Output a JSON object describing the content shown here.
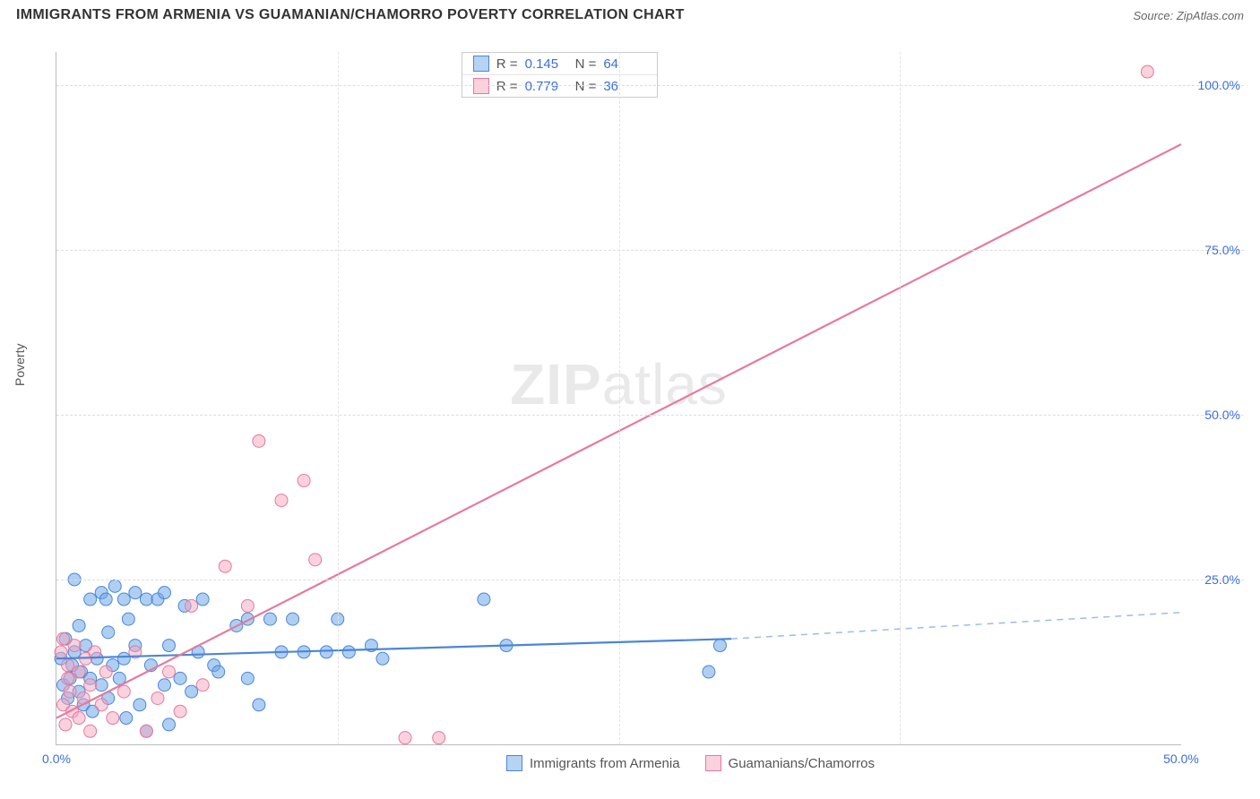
{
  "title": "IMMIGRANTS FROM ARMENIA VS GUAMANIAN/CHAMORRO POVERTY CORRELATION CHART",
  "source": "Source: ZipAtlas.com",
  "ylabel": "Poverty",
  "watermark_zip": "ZIP",
  "watermark_atlas": "atlas",
  "chart": {
    "type": "scatter-with-regression",
    "xlim": [
      0,
      50
    ],
    "ylim": [
      0,
      105
    ],
    "x_ticks": [
      0,
      50
    ],
    "x_tick_labels": [
      "0.0%",
      "50.0%"
    ],
    "x_minor_ticks": [
      12.5,
      25,
      37.5
    ],
    "y_ticks": [
      25,
      50,
      75,
      100
    ],
    "y_tick_labels": [
      "25.0%",
      "50.0%",
      "75.0%",
      "100.0%"
    ],
    "background_color": "#ffffff",
    "grid_color": "#dddddd",
    "axis_color": "#bbbbbb",
    "tick_label_color": "#3a6fd8"
  },
  "series": [
    {
      "name": "Immigrants from Armenia",
      "color_fill": "#6ea8e8",
      "color_stroke": "#4a86d9",
      "marker_radius": 7,
      "marker_opacity": 0.55,
      "stats": {
        "R": "0.145",
        "N": "64"
      },
      "regression": {
        "x1": 0,
        "y1": 13,
        "x2": 30,
        "y2": 16,
        "solid_until_x": 30,
        "dash_to_x": 50,
        "dash_y2": 20,
        "stroke_width": 2.2,
        "dash_color": "#9cbce8"
      },
      "points": [
        [
          0.2,
          13
        ],
        [
          0.3,
          9
        ],
        [
          0.4,
          16
        ],
        [
          0.5,
          7
        ],
        [
          0.6,
          10
        ],
        [
          0.7,
          12
        ],
        [
          0.8,
          14
        ],
        [
          0.8,
          25
        ],
        [
          1.0,
          8
        ],
        [
          1.0,
          18
        ],
        [
          1.1,
          11
        ],
        [
          1.2,
          6
        ],
        [
          1.3,
          15
        ],
        [
          1.5,
          10
        ],
        [
          1.5,
          22
        ],
        [
          1.6,
          5
        ],
        [
          1.8,
          13
        ],
        [
          2.0,
          9
        ],
        [
          2.0,
          23
        ],
        [
          2.2,
          22
        ],
        [
          2.3,
          7
        ],
        [
          2.3,
          17
        ],
        [
          2.5,
          12
        ],
        [
          2.6,
          24
        ],
        [
          2.8,
          10
        ],
        [
          3.0,
          13
        ],
        [
          3.0,
          22
        ],
        [
          3.1,
          4
        ],
        [
          3.2,
          19
        ],
        [
          3.5,
          15
        ],
        [
          3.5,
          23
        ],
        [
          3.7,
          6
        ],
        [
          4.0,
          22
        ],
        [
          4.0,
          2
        ],
        [
          4.2,
          12
        ],
        [
          4.5,
          22
        ],
        [
          4.8,
          9
        ],
        [
          4.8,
          23
        ],
        [
          5.0,
          15
        ],
        [
          5.0,
          3
        ],
        [
          5.5,
          10
        ],
        [
          5.7,
          21
        ],
        [
          6.0,
          8
        ],
        [
          6.3,
          14
        ],
        [
          6.5,
          22
        ],
        [
          7.0,
          12
        ],
        [
          7.2,
          11
        ],
        [
          8.0,
          18
        ],
        [
          8.5,
          10
        ],
        [
          8.5,
          19
        ],
        [
          9.0,
          6
        ],
        [
          9.5,
          19
        ],
        [
          10.0,
          14
        ],
        [
          10.5,
          19
        ],
        [
          11.0,
          14
        ],
        [
          12.0,
          14
        ],
        [
          12.5,
          19
        ],
        [
          13.0,
          14
        ],
        [
          14.0,
          15
        ],
        [
          14.5,
          13
        ],
        [
          19.0,
          22
        ],
        [
          20.0,
          15
        ],
        [
          29.0,
          11
        ],
        [
          29.5,
          15
        ]
      ]
    },
    {
      "name": "Guamanians/Chamorros",
      "color_fill": "#f4a6bd",
      "color_stroke": "#e8789c",
      "marker_radius": 7,
      "marker_opacity": 0.5,
      "stats": {
        "R": "0.779",
        "N": "36"
      },
      "regression": {
        "x1": 0,
        "y1": 4,
        "x2": 50,
        "y2": 91,
        "solid_until_x": 50,
        "stroke_width": 2.2
      },
      "points": [
        [
          0.2,
          14
        ],
        [
          0.3,
          6
        ],
        [
          0.3,
          16
        ],
        [
          0.4,
          3
        ],
        [
          0.5,
          10
        ],
        [
          0.5,
          12
        ],
        [
          0.6,
          8
        ],
        [
          0.7,
          5
        ],
        [
          0.8,
          15
        ],
        [
          1.0,
          4
        ],
        [
          1.0,
          11
        ],
        [
          1.2,
          7
        ],
        [
          1.3,
          13
        ],
        [
          1.5,
          2
        ],
        [
          1.5,
          9
        ],
        [
          1.7,
          14
        ],
        [
          2.0,
          6
        ],
        [
          2.2,
          11
        ],
        [
          2.5,
          4
        ],
        [
          3.0,
          8
        ],
        [
          3.5,
          14
        ],
        [
          4.0,
          2
        ],
        [
          4.5,
          7
        ],
        [
          5.0,
          11
        ],
        [
          5.5,
          5
        ],
        [
          6.0,
          21
        ],
        [
          6.5,
          9
        ],
        [
          7.5,
          27
        ],
        [
          8.5,
          21
        ],
        [
          9.0,
          46
        ],
        [
          10.0,
          37
        ],
        [
          11.0,
          40
        ],
        [
          11.5,
          28
        ],
        [
          15.5,
          1
        ],
        [
          17.0,
          1
        ],
        [
          48.5,
          102
        ]
      ]
    }
  ],
  "stat_legend": {
    "R_label": "R =",
    "N_label": "N ="
  }
}
